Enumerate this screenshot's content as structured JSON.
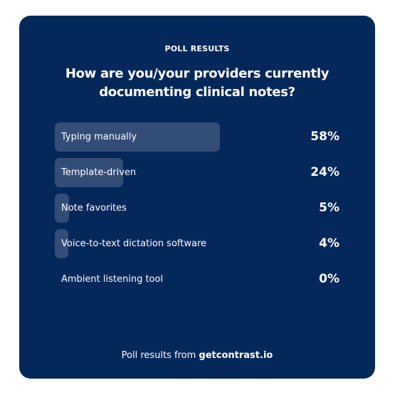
{
  "header": {
    "eyebrow": "POLL RESULTS",
    "title": "How are you/your providers currently documenting clinical notes?"
  },
  "footer": {
    "prefix": "Poll results from",
    "brand": "getcontrast.io"
  },
  "colors": {
    "card_background": "#05285a",
    "text": "#ffffff",
    "bar_fill": "rgba(255,255,255,0.18)"
  },
  "chart_data": {
    "type": "bar",
    "orientation": "horizontal",
    "title": "How are you/your providers currently documenting clinical notes?",
    "categories": [
      "Typing manually",
      "Template-driven",
      "Note favorites",
      "Voice-to-text dictation software",
      "Ambient listening tool"
    ],
    "values": [
      58,
      24,
      5,
      4,
      0
    ],
    "value_labels": [
      "58%",
      "24%",
      "5%",
      "4%",
      "0%"
    ],
    "unit": "%",
    "xlim": [
      0,
      100
    ]
  }
}
